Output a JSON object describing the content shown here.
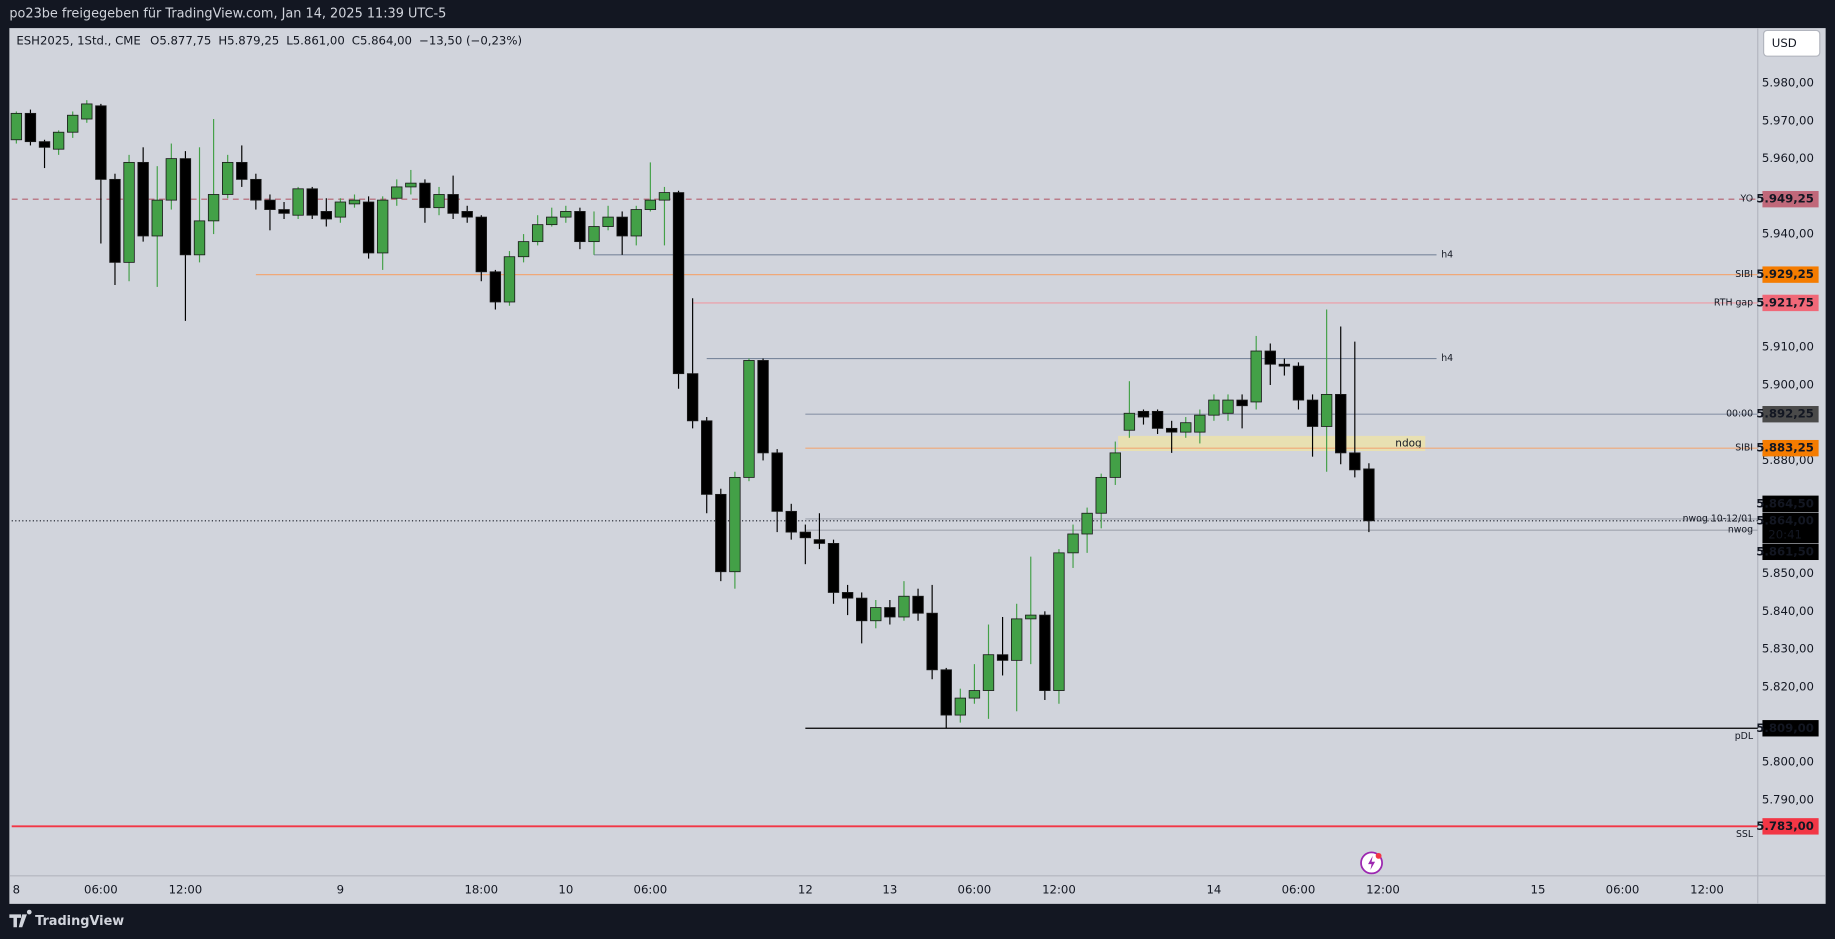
{
  "header": {
    "text": "po23be freigegeben für TradingView.com, Jan 14, 2025 11:39 UTC-5"
  },
  "footer": {
    "brand": "TradingView"
  },
  "chart_data": {
    "type": "candlestick",
    "title": "ESH2025, 1Std., CME",
    "ohlc": [
      "O5.877,75",
      "H5.879,25",
      "L5.861,00",
      "C5.864,00",
      "−13,50 (−0,23%)"
    ],
    "currency": "USD",
    "up_color": "#43a047",
    "down_color": "#000000",
    "grid": false,
    "xlim": [
      -0.33,
      123.6
    ],
    "xticks": [
      {
        "value": 0,
        "label": "8"
      },
      {
        "value": 6,
        "label": "06:00"
      },
      {
        "value": 12,
        "label": "12:00"
      },
      {
        "value": 23,
        "label": "9"
      },
      {
        "value": 33,
        "label": "18:00"
      },
      {
        "value": 39,
        "label": "10"
      },
      {
        "value": 45,
        "label": "06:00"
      },
      {
        "value": 56,
        "label": "12"
      },
      {
        "value": 62,
        "label": "13"
      },
      {
        "value": 68,
        "label": "06:00"
      },
      {
        "value": 74,
        "label": "12:00"
      },
      {
        "value": 85,
        "label": "14"
      },
      {
        "value": 91,
        "label": "06:00"
      },
      {
        "value": 97,
        "label": "12:00"
      },
      {
        "value": 108,
        "label": "15"
      },
      {
        "value": 114,
        "label": "06:00"
      },
      {
        "value": 120,
        "label": "12:00"
      }
    ],
    "ylim": [
      5769.9,
      5994.6
    ],
    "yticks": [
      {
        "value": 5980,
        "label": "5.980,00"
      },
      {
        "value": 5970,
        "label": "5.970,00"
      },
      {
        "value": 5960,
        "label": "5.960,00"
      },
      {
        "value": 5940,
        "label": "5.940,00"
      },
      {
        "value": 5910,
        "label": "5.910,00"
      },
      {
        "value": 5900,
        "label": "5.900,00"
      },
      {
        "value": 5880,
        "label": "5.880,00"
      },
      {
        "value": 5850,
        "label": "5.850,00"
      },
      {
        "value": 5840,
        "label": "5.840,00"
      },
      {
        "value": 5830,
        "label": "5.830,00"
      },
      {
        "value": 5820,
        "label": "5.820,00"
      },
      {
        "value": 5800,
        "label": "5.800,00"
      },
      {
        "value": 5790,
        "label": "5.790,00"
      }
    ],
    "open": [
      5965,
      5972,
      5964.5,
      5962.5,
      5967,
      5970.5,
      5974,
      5954.5,
      5932.5,
      5959,
      5939.5,
      5949,
      5960,
      5934.5,
      5943.5,
      5950.5,
      5959,
      5954.5,
      5949,
      5946.5,
      5945,
      5952,
      5946,
      5944.5,
      5948,
      5948.5,
      5935,
      5949.5,
      5952.5,
      5953.5,
      5947,
      5950.5,
      5946,
      5944.5,
      5930,
      5922,
      5934,
      5938,
      5942.5,
      5944.5,
      5946,
      5938,
      5942,
      5944.5,
      5939.5,
      5946.5,
      5949,
      5951,
      5903,
      5890.5,
      5871,
      5850.5,
      5875.5,
      5906.5,
      5882,
      5866.5,
      5861,
      5859,
      5858,
      5845,
      5843.5,
      5837.5,
      5841,
      5838.5,
      5844,
      5839.5,
      5824.5,
      5812.5,
      5817,
      5819,
      5828.5,
      5827,
      5838,
      5839,
      5819,
      5855.5,
      5860.5,
      5866,
      5875.5,
      5888,
      5893,
      5893,
      5888.5,
      5887.5,
      5887.5,
      5892,
      5892.5,
      5896,
      5895.5,
      5909,
      5905.5,
      5905,
      5896,
      5889,
      5897.5,
      5882,
      5877.75
    ],
    "high": [
      5972.5,
      5973,
      5965,
      5967.5,
      5972.5,
      5975.5,
      5974.5,
      5956,
      5961,
      5963,
      5958,
      5964,
      5962,
      5963,
      5970.5,
      5961,
      5963.5,
      5956,
      5950.5,
      5948.5,
      5952.5,
      5952.5,
      5949.5,
      5949.5,
      5950.5,
      5950,
      5950,
      5954.5,
      5957,
      5954.5,
      5952.5,
      5955.5,
      5947.5,
      5945,
      5930.5,
      5935.5,
      5940,
      5945,
      5947,
      5947.5,
      5947,
      5946,
      5947.5,
      5946,
      5947.5,
      5959,
      5952.5,
      5951.5,
      5923,
      5891.5,
      5872.5,
      5877,
      5907,
      5907,
      5883,
      5868.5,
      5863,
      5866,
      5859,
      5847,
      5845,
      5843,
      5843,
      5848,
      5846,
      5847,
      5825,
      5819.5,
      5826,
      5836.5,
      5838.5,
      5842,
      5854.5,
      5840,
      5856.5,
      5863,
      5867.5,
      5876.5,
      5885,
      5901,
      5893.5,
      5893.5,
      5890.5,
      5891.5,
      5893.5,
      5897.5,
      5897.5,
      5897.5,
      5913,
      5911,
      5907,
      5906,
      5897.5,
      5920,
      5915.5,
      5911.5,
      5879.25
    ],
    "low": [
      5964,
      5963.5,
      5957.5,
      5961,
      5965.5,
      5969.5,
      5937.5,
      5926.5,
      5927.5,
      5938,
      5926,
      5946.5,
      5917,
      5932.5,
      5940,
      5949.5,
      5952.5,
      5946.5,
      5941,
      5944,
      5944,
      5944,
      5942,
      5943,
      5947,
      5933.5,
      5930.5,
      5947.5,
      5950.5,
      5943,
      5945,
      5944,
      5943,
      5927.5,
      5920,
      5921,
      5932.5,
      5937,
      5942,
      5943,
      5936,
      5934.5,
      5941,
      5934.5,
      5937,
      5946,
      5937,
      5899,
      5888.5,
      5866,
      5848,
      5846,
      5874.5,
      5880,
      5861,
      5859,
      5852.5,
      5856.5,
      5842,
      5839,
      5831.5,
      5835.5,
      5836.5,
      5837.5,
      5837.5,
      5822,
      5809,
      5810.5,
      5815.5,
      5811.5,
      5823,
      5813.5,
      5826,
      5816.5,
      5815.5,
      5851.5,
      5855.5,
      5862,
      5873.5,
      5886,
      5889.5,
      5887,
      5882,
      5886,
      5884.5,
      5890.5,
      5890.5,
      5888.5,
      5893.5,
      5900,
      5902.5,
      5893.5,
      5881,
      5877,
      5879,
      5875.5,
      5861
    ],
    "close": [
      5972,
      5964.5,
      5963,
      5967,
      5971.5,
      5974.5,
      5954.5,
      5932.5,
      5959,
      5939.5,
      5949,
      5960,
      5934.5,
      5943.5,
      5950.5,
      5959,
      5954.5,
      5949,
      5946.5,
      5945.5,
      5952,
      5945,
      5944,
      5948.5,
      5949,
      5935,
      5949,
      5952.5,
      5953.5,
      5947,
      5950.5,
      5945.5,
      5944.5,
      5930,
      5922,
      5934,
      5938,
      5942.5,
      5944.5,
      5946,
      5938,
      5942,
      5944.5,
      5939.5,
      5946.5,
      5949,
      5951,
      5903,
      5890.5,
      5871,
      5850.5,
      5875.5,
      5906.5,
      5882,
      5866.5,
      5861,
      5859.5,
      5858,
      5845,
      5843.5,
      5837.5,
      5841,
      5838.5,
      5844,
      5839.5,
      5824.5,
      5812.5,
      5817,
      5819,
      5828.5,
      5827,
      5838,
      5839,
      5819,
      5855.5,
      5860.5,
      5866,
      5875.5,
      5882,
      5892.5,
      5891.5,
      5888.5,
      5887.5,
      5890,
      5892,
      5896,
      5896,
      5894.5,
      5909,
      5905.5,
      5905,
      5896,
      5889,
      5897.5,
      5882,
      5877.5,
      5864
    ],
    "last": {
      "value": 5864,
      "value_label": "5.864,00",
      "countdown": "20:41"
    },
    "levels": [
      {
        "name": "YO",
        "value": 5949.25,
        "value_label": "5.949,25",
        "color": "#b4606f",
        "tag_color": "#c0687a",
        "label_color": "#555555",
        "dash": true
      },
      {
        "name": "h4",
        "value": 5934.5,
        "color": "#7a879c",
        "label_color": "#333333",
        "x_start": 41,
        "x_end": 100.8
      },
      {
        "name": "SIBI",
        "value": 5929.25,
        "value_label": "5.929,25",
        "color": "#f0a878",
        "tag_color": "#f57c00",
        "label_color": "#b4606f",
        "x_start": 17
      },
      {
        "name": "RTH gap",
        "value": 5921.75,
        "value_label": "5.921,75",
        "color": "#ee9aa4",
        "tag_color": "#f06878",
        "label_color": "#5b8fd9",
        "x_start": 48
      },
      {
        "name": "h4",
        "value": 5907,
        "color": "#7a879c",
        "label_color": "#333333",
        "x_start": 49,
        "x_end": 100.8
      },
      {
        "name": "00:00",
        "value": 5892.25,
        "value_label": "5.892,25",
        "color": "#8a94a8",
        "tag_color": "#4a4a4a",
        "label_color": "#5b8fd9",
        "x_start": 56
      },
      {
        "name": "SIBI",
        "value": 5883.25,
        "value_label": "5.883,25",
        "color": "#f0a878",
        "tag_color": "#f57c00",
        "label_color": "#b4606f",
        "x_start": 56
      },
      {
        "name": "nwog 10-12/01",
        "value": 5864.5,
        "value_label": "5.864,50",
        "color": "#a0a4ae",
        "tag_color": "#000000",
        "label_color": "#777777",
        "x_start": 56
      },
      {
        "name": "nwog",
        "value": 5861.5,
        "value_label": "5.861,50",
        "color": "#a0a4ae",
        "tag_color": "#000000",
        "label_color": "#777777",
        "x_start": 56
      },
      {
        "name": "pDL",
        "value": 5809,
        "value_label": "5.809,00",
        "color": "#000000",
        "tag_color": "#000000",
        "label_color": "#000000",
        "x_start": 56
      },
      {
        "name": "SSL",
        "value": 5783,
        "value_label": "5.783,00",
        "color": "#f23645",
        "tag_color": "#f23645",
        "label_color": "#000000"
      }
    ],
    "zones": [
      {
        "name": "ndog",
        "top": 5886.5,
        "bottom": 5882.5,
        "x_start": 78.2,
        "x_end": 100,
        "color": "#f2e6a0"
      }
    ]
  }
}
